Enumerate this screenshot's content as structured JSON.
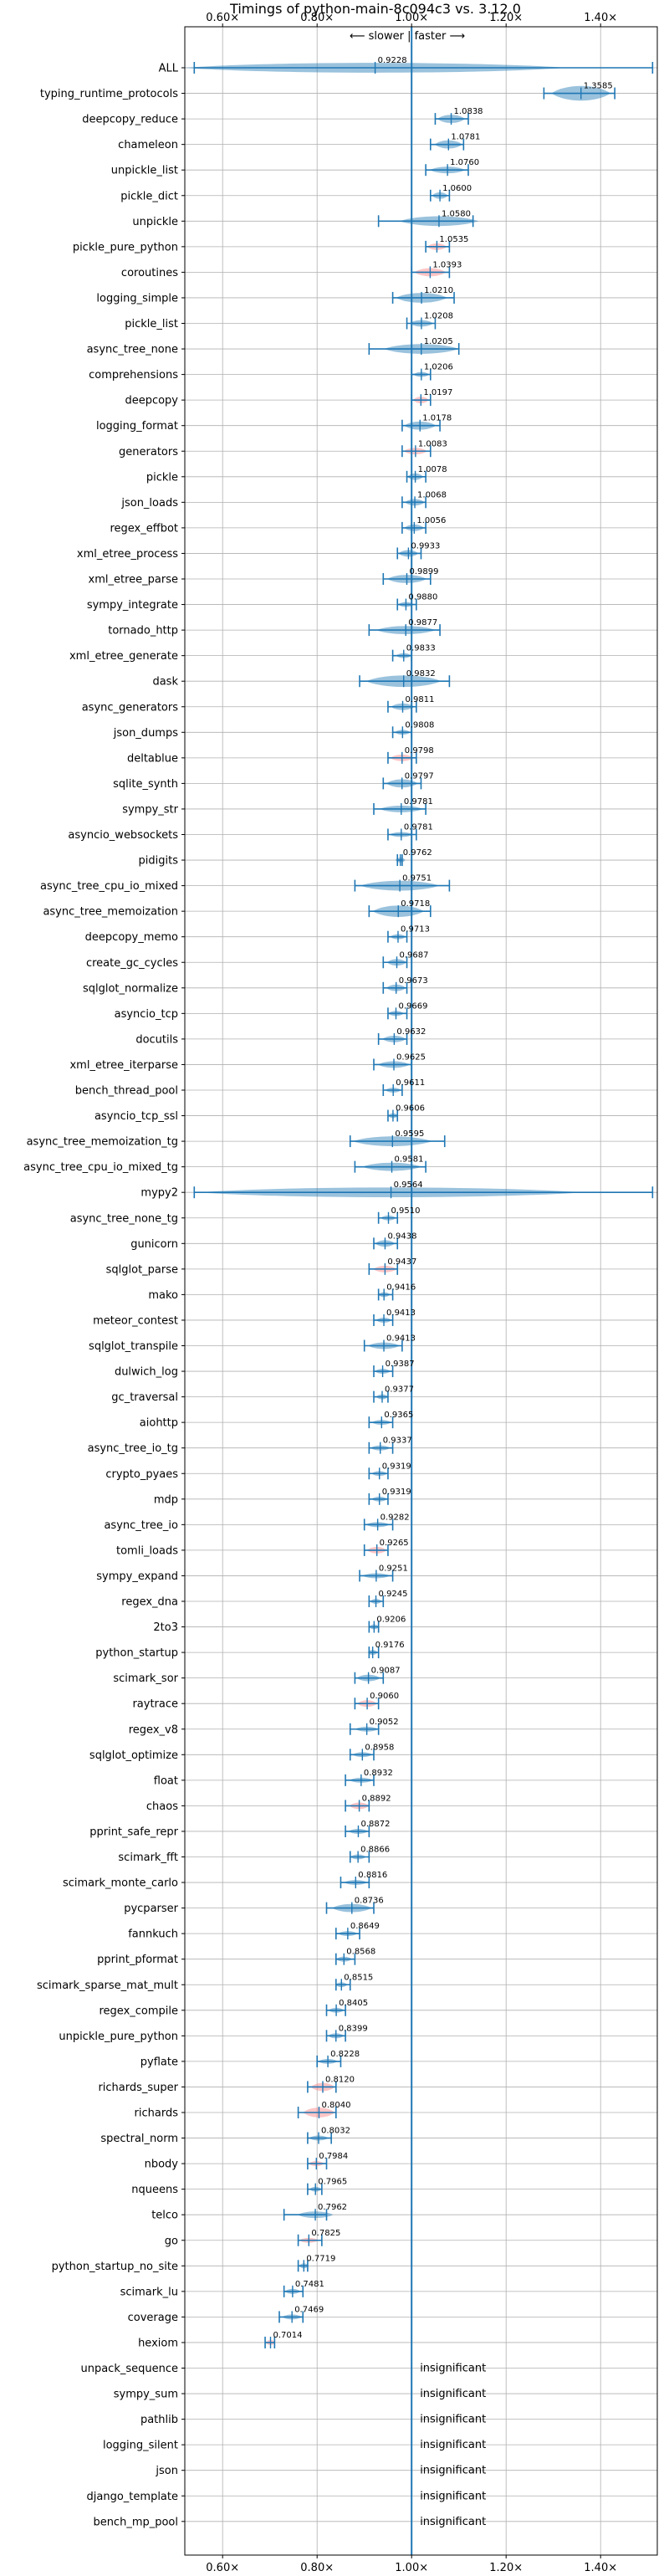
{
  "chart_data": {
    "type": "violin",
    "title": "Timings of python-main-8c094c3 vs. 3.12.0",
    "direction_label": "⟵ slower | faster ⟶",
    "xlim": [
      0.52,
      1.52
    ],
    "xticks": [
      0.6,
      0.8,
      1.0,
      1.2,
      1.4
    ],
    "xtick_labels": [
      "0.60×",
      "0.80×",
      "1.00×",
      "1.20×",
      "1.40×"
    ],
    "reference_line": 1.0,
    "grid": true,
    "colors": {
      "violin": "#1f77b4",
      "highlight": "#ff7f7f",
      "axis": "#1f77b4"
    },
    "insignificant_text": "insignificant",
    "benchmarks": [
      {
        "name": "ALL",
        "value": 0.9228,
        "low": 0.54,
        "high": 1.51,
        "width": 0.6
      },
      {
        "name": "typing_runtime_protocols",
        "value": 1.3585,
        "low": 1.28,
        "high": 1.43,
        "width": 0.9
      },
      {
        "name": "deepcopy_reduce",
        "value": 1.0838,
        "low": 1.05,
        "high": 1.12,
        "width": 0.5
      },
      {
        "name": "chameleon",
        "value": 1.0781,
        "low": 1.04,
        "high": 1.11,
        "width": 0.5
      },
      {
        "name": "unpickle_list",
        "value": 1.076,
        "low": 1.03,
        "high": 1.12,
        "width": 0.4
      },
      {
        "name": "pickle_dict",
        "value": 1.06,
        "low": 1.04,
        "high": 1.08,
        "width": 0.4
      },
      {
        "name": "unpickle",
        "value": 1.058,
        "low": 0.93,
        "high": 1.13,
        "width": 0.6
      },
      {
        "name": "pickle_pure_python",
        "value": 1.0535,
        "low": 1.03,
        "high": 1.08,
        "width": 0.4,
        "highlight": true
      },
      {
        "name": "coroutines",
        "value": 1.0393,
        "low": 1.0,
        "high": 1.08,
        "width": 0.5,
        "highlight": true
      },
      {
        "name": "logging_simple",
        "value": 1.021,
        "low": 0.96,
        "high": 1.09,
        "width": 0.6
      },
      {
        "name": "pickle_list",
        "value": 1.0208,
        "low": 0.99,
        "high": 1.05,
        "width": 0.4
      },
      {
        "name": "async_tree_none",
        "value": 1.0205,
        "low": 0.91,
        "high": 1.1,
        "width": 0.6
      },
      {
        "name": "comprehensions",
        "value": 1.0206,
        "low": 1.0,
        "high": 1.04,
        "width": 0.3
      },
      {
        "name": "deepcopy",
        "value": 1.0197,
        "low": 1.0,
        "high": 1.04,
        "width": 0.4,
        "highlight": true
      },
      {
        "name": "logging_format",
        "value": 1.0178,
        "low": 0.98,
        "high": 1.06,
        "width": 0.5
      },
      {
        "name": "generators",
        "value": 1.0083,
        "low": 0.98,
        "high": 1.04,
        "width": 0.4,
        "highlight": true
      },
      {
        "name": "pickle",
        "value": 1.0078,
        "low": 0.99,
        "high": 1.03,
        "width": 0.4
      },
      {
        "name": "json_loads",
        "value": 1.0068,
        "low": 0.98,
        "high": 1.03,
        "width": 0.4
      },
      {
        "name": "regex_effbot",
        "value": 1.0056,
        "low": 0.98,
        "high": 1.03,
        "width": 0.4
      },
      {
        "name": "xml_etree_process",
        "value": 0.9933,
        "low": 0.97,
        "high": 1.02,
        "width": 0.4
      },
      {
        "name": "xml_etree_parse",
        "value": 0.9899,
        "low": 0.94,
        "high": 1.04,
        "width": 0.5
      },
      {
        "name": "sympy_integrate",
        "value": 0.988,
        "low": 0.97,
        "high": 1.01,
        "width": 0.3
      },
      {
        "name": "tornado_http",
        "value": 0.9877,
        "low": 0.91,
        "high": 1.06,
        "width": 0.5
      },
      {
        "name": "xml_etree_generate",
        "value": 0.9833,
        "low": 0.96,
        "high": 1.0,
        "width": 0.3
      },
      {
        "name": "dask",
        "value": 0.9832,
        "low": 0.89,
        "high": 1.08,
        "width": 0.7
      },
      {
        "name": "async_generators",
        "value": 0.9811,
        "low": 0.95,
        "high": 1.01,
        "width": 0.4
      },
      {
        "name": "json_dumps",
        "value": 0.9808,
        "low": 0.96,
        "high": 1.0,
        "width": 0.3
      },
      {
        "name": "deltablue",
        "value": 0.9798,
        "low": 0.95,
        "high": 1.01,
        "width": 0.4,
        "highlight": true
      },
      {
        "name": "sqlite_synth",
        "value": 0.9797,
        "low": 0.94,
        "high": 1.02,
        "width": 0.5
      },
      {
        "name": "sympy_str",
        "value": 0.9781,
        "low": 0.92,
        "high": 1.03,
        "width": 0.4
      },
      {
        "name": "asyncio_websockets",
        "value": 0.9781,
        "low": 0.95,
        "high": 1.01,
        "width": 0.3
      },
      {
        "name": "pidigits",
        "value": 0.9762,
        "low": 0.97,
        "high": 0.98,
        "width": 0.3
      },
      {
        "name": "async_tree_cpu_io_mixed",
        "value": 0.9751,
        "low": 0.88,
        "high": 1.08,
        "width": 0.6
      },
      {
        "name": "async_tree_memoization",
        "value": 0.9718,
        "low": 0.91,
        "high": 1.04,
        "width": 0.7
      },
      {
        "name": "deepcopy_memo",
        "value": 0.9713,
        "low": 0.95,
        "high": 0.99,
        "width": 0.3
      },
      {
        "name": "create_gc_cycles",
        "value": 0.9687,
        "low": 0.94,
        "high": 0.99,
        "width": 0.4
      },
      {
        "name": "sqlglot_normalize",
        "value": 0.9673,
        "low": 0.94,
        "high": 0.99,
        "width": 0.4
      },
      {
        "name": "asyncio_tcp",
        "value": 0.9669,
        "low": 0.95,
        "high": 0.99,
        "width": 0.3
      },
      {
        "name": "docutils",
        "value": 0.9632,
        "low": 0.93,
        "high": 0.99,
        "width": 0.4
      },
      {
        "name": "xml_etree_iterparse",
        "value": 0.9625,
        "low": 0.92,
        "high": 1.0,
        "width": 0.4
      },
      {
        "name": "bench_thread_pool",
        "value": 0.9611,
        "low": 0.94,
        "high": 0.98,
        "width": 0.3
      },
      {
        "name": "asyncio_tcp_ssl",
        "value": 0.9606,
        "low": 0.95,
        "high": 0.97,
        "width": 0.3
      },
      {
        "name": "async_tree_memoization_tg",
        "value": 0.9595,
        "low": 0.87,
        "high": 1.07,
        "width": 0.6
      },
      {
        "name": "async_tree_cpu_io_mixed_tg",
        "value": 0.9581,
        "low": 0.88,
        "high": 1.03,
        "width": 0.5
      },
      {
        "name": "mypy2",
        "value": 0.9564,
        "low": 0.54,
        "high": 1.51,
        "width": 0.6
      },
      {
        "name": "async_tree_none_tg",
        "value": 0.951,
        "low": 0.93,
        "high": 0.97,
        "width": 0.3
      },
      {
        "name": "gunicorn",
        "value": 0.9438,
        "low": 0.92,
        "high": 0.97,
        "width": 0.4
      },
      {
        "name": "sqlglot_parse",
        "value": 0.9437,
        "low": 0.91,
        "high": 0.97,
        "width": 0.4,
        "highlight": true
      },
      {
        "name": "mako",
        "value": 0.9416,
        "low": 0.93,
        "high": 0.96,
        "width": 0.3
      },
      {
        "name": "meteor_contest",
        "value": 0.9413,
        "low": 0.92,
        "high": 0.96,
        "width": 0.3
      },
      {
        "name": "sqlglot_transpile",
        "value": 0.9413,
        "low": 0.9,
        "high": 0.98,
        "width": 0.4
      },
      {
        "name": "dulwich_log",
        "value": 0.9387,
        "low": 0.92,
        "high": 0.96,
        "width": 0.3
      },
      {
        "name": "gc_traversal",
        "value": 0.9377,
        "low": 0.92,
        "high": 0.95,
        "width": 0.3
      },
      {
        "name": "aiohttp",
        "value": 0.9365,
        "low": 0.91,
        "high": 0.96,
        "width": 0.3
      },
      {
        "name": "async_tree_io_tg",
        "value": 0.9337,
        "low": 0.91,
        "high": 0.96,
        "width": 0.3
      },
      {
        "name": "crypto_pyaes",
        "value": 0.9319,
        "low": 0.91,
        "high": 0.95,
        "width": 0.3
      },
      {
        "name": "mdp",
        "value": 0.9319,
        "low": 0.91,
        "high": 0.95,
        "width": 0.3
      },
      {
        "name": "async_tree_io",
        "value": 0.9282,
        "low": 0.9,
        "high": 0.96,
        "width": 0.3
      },
      {
        "name": "tomli_loads",
        "value": 0.9265,
        "low": 0.9,
        "high": 0.95,
        "width": 0.4,
        "highlight": true
      },
      {
        "name": "sympy_expand",
        "value": 0.9251,
        "low": 0.89,
        "high": 0.96,
        "width": 0.3
      },
      {
        "name": "regex_dna",
        "value": 0.9245,
        "low": 0.91,
        "high": 0.94,
        "width": 0.3
      },
      {
        "name": "2to3",
        "value": 0.9206,
        "low": 0.91,
        "high": 0.93,
        "width": 0.3
      },
      {
        "name": "python_startup",
        "value": 0.9176,
        "low": 0.91,
        "high": 0.93,
        "width": 0.3
      },
      {
        "name": "scimark_sor",
        "value": 0.9087,
        "low": 0.88,
        "high": 0.94,
        "width": 0.4
      },
      {
        "name": "raytrace",
        "value": 0.906,
        "low": 0.88,
        "high": 0.93,
        "width": 0.4,
        "highlight": true
      },
      {
        "name": "regex_v8",
        "value": 0.9052,
        "low": 0.87,
        "high": 0.93,
        "width": 0.3
      },
      {
        "name": "sqlglot_optimize",
        "value": 0.8958,
        "low": 0.87,
        "high": 0.92,
        "width": 0.3
      },
      {
        "name": "float",
        "value": 0.8932,
        "low": 0.86,
        "high": 0.92,
        "width": 0.3
      },
      {
        "name": "chaos",
        "value": 0.8892,
        "low": 0.86,
        "high": 0.91,
        "width": 0.4,
        "highlight": true
      },
      {
        "name": "pprint_safe_repr",
        "value": 0.8872,
        "low": 0.86,
        "high": 0.91,
        "width": 0.3
      },
      {
        "name": "scimark_fft",
        "value": 0.8866,
        "low": 0.87,
        "high": 0.91,
        "width": 0.3
      },
      {
        "name": "scimark_monte_carlo",
        "value": 0.8816,
        "low": 0.85,
        "high": 0.91,
        "width": 0.3
      },
      {
        "name": "pycparser",
        "value": 0.8736,
        "low": 0.82,
        "high": 0.92,
        "width": 0.5
      },
      {
        "name": "fannkuch",
        "value": 0.8649,
        "low": 0.84,
        "high": 0.89,
        "width": 0.3
      },
      {
        "name": "pprint_pformat",
        "value": 0.8568,
        "low": 0.84,
        "high": 0.88,
        "width": 0.3
      },
      {
        "name": "scimark_sparse_mat_mult",
        "value": 0.8515,
        "low": 0.84,
        "high": 0.87,
        "width": 0.3
      },
      {
        "name": "regex_compile",
        "value": 0.8405,
        "low": 0.82,
        "high": 0.86,
        "width": 0.3
      },
      {
        "name": "unpickle_pure_python",
        "value": 0.8399,
        "low": 0.82,
        "high": 0.86,
        "width": 0.3
      },
      {
        "name": "pyflate",
        "value": 0.8228,
        "low": 0.8,
        "high": 0.85,
        "width": 0.3
      },
      {
        "name": "richards_super",
        "value": 0.812,
        "low": 0.78,
        "high": 0.84,
        "width": 0.5,
        "highlight": true
      },
      {
        "name": "richards",
        "value": 0.804,
        "low": 0.76,
        "high": 0.84,
        "width": 0.6,
        "highlight": true
      },
      {
        "name": "spectral_norm",
        "value": 0.8032,
        "low": 0.78,
        "high": 0.83,
        "width": 0.3
      },
      {
        "name": "nbody",
        "value": 0.7984,
        "low": 0.78,
        "high": 0.82,
        "width": 0.3,
        "highlight": true
      },
      {
        "name": "nqueens",
        "value": 0.7965,
        "low": 0.78,
        "high": 0.81,
        "width": 0.3
      },
      {
        "name": "telco",
        "value": 0.7962,
        "low": 0.73,
        "high": 0.82,
        "width": 0.4
      },
      {
        "name": "go",
        "value": 0.7825,
        "low": 0.76,
        "high": 0.81,
        "width": 0.3,
        "highlight": true
      },
      {
        "name": "python_startup_no_site",
        "value": 0.7719,
        "low": 0.76,
        "high": 0.78,
        "width": 0.3
      },
      {
        "name": "scimark_lu",
        "value": 0.7481,
        "low": 0.73,
        "high": 0.77,
        "width": 0.3
      },
      {
        "name": "coverage",
        "value": 0.7469,
        "low": 0.72,
        "high": 0.77,
        "width": 0.3
      },
      {
        "name": "hexiom",
        "value": 0.7014,
        "low": 0.69,
        "high": 0.71,
        "width": 0.3,
        "highlight": true
      },
      {
        "name": "unpack_sequence",
        "insignificant": true
      },
      {
        "name": "sympy_sum",
        "insignificant": true
      },
      {
        "name": "pathlib",
        "insignificant": true
      },
      {
        "name": "logging_silent",
        "insignificant": true
      },
      {
        "name": "json",
        "insignificant": true
      },
      {
        "name": "django_template",
        "insignificant": true
      },
      {
        "name": "bench_mp_pool",
        "insignificant": true
      }
    ]
  }
}
